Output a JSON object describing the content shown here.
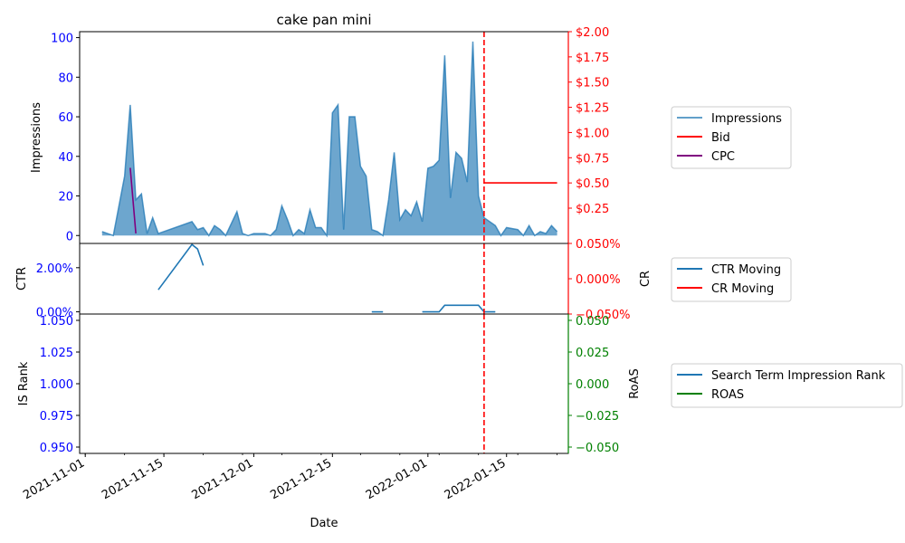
{
  "chart_data": {
    "type": "line",
    "title": "cake pan mini",
    "xlabel": "Date",
    "colors": {
      "impressions": "#1f77b4",
      "bid": "#ff0000",
      "cpc": "#800080",
      "ctr": "#1f77b4",
      "cr": "#ff0000",
      "is_rank": "#1f77b4",
      "roas": "#008000",
      "left_ticks": "#0000ff",
      "red_ticks": "#ff0000",
      "green_ticks": "#008000",
      "vline": "#ff0000"
    },
    "x_ticks": [
      "2021-11-01",
      "2021-11-15",
      "2021-12-01",
      "2021-12-15",
      "2022-01-01",
      "2022-01-15"
    ],
    "x_range": [
      "2021-10-31",
      "2022-01-26"
    ],
    "vline_date": "2022-01-11",
    "panels": [
      {
        "id": "top",
        "ylabel": "Impressions",
        "ylabel_right": "",
        "ylim": [
          -4,
          103
        ],
        "y_ticks": [
          "0",
          "20",
          "40",
          "60",
          "80",
          "100"
        ],
        "y_tick_values": [
          0,
          20,
          40,
          60,
          80,
          100
        ],
        "right_ylim": [
          -0.1,
          2.0
        ],
        "right_ticks": [
          "$0.25",
          "$0.50",
          "$0.75",
          "$1.00",
          "$1.25",
          "$1.50",
          "$1.75",
          "$2.00"
        ],
        "right_tick_values": [
          0.25,
          0.5,
          0.75,
          1.0,
          1.25,
          1.5,
          1.75,
          2.0
        ],
        "series": [
          {
            "name": "Impressions",
            "kind": "area",
            "axis": "left",
            "points": [
              [
                "2021-11-04",
                2
              ],
              [
                "2021-11-06",
                0
              ],
              [
                "2021-11-08",
                30
              ],
              [
                "2021-11-09",
                66
              ],
              [
                "2021-11-10",
                18
              ],
              [
                "2021-11-11",
                21
              ],
              [
                "2021-11-12",
                1
              ],
              [
                "2021-11-13",
                9
              ],
              [
                "2021-11-14",
                1
              ],
              [
                "2021-11-20",
                7
              ],
              [
                "2021-11-21",
                3
              ],
              [
                "2021-11-22",
                4
              ],
              [
                "2021-11-23",
                0
              ],
              [
                "2021-11-24",
                5
              ],
              [
                "2021-11-25",
                3
              ],
              [
                "2021-11-26",
                0
              ],
              [
                "2021-11-27",
                6
              ],
              [
                "2021-11-28",
                12
              ],
              [
                "2021-11-29",
                1
              ],
              [
                "2021-11-30",
                0
              ],
              [
                "2021-12-01",
                1
              ],
              [
                "2021-12-03",
                1
              ],
              [
                "2021-12-04",
                0
              ],
              [
                "2021-12-05",
                3
              ],
              [
                "2021-12-06",
                15
              ],
              [
                "2021-12-07",
                8
              ],
              [
                "2021-12-08",
                0
              ],
              [
                "2021-12-09",
                3
              ],
              [
                "2021-12-10",
                1
              ],
              [
                "2021-12-11",
                13
              ],
              [
                "2021-12-12",
                4
              ],
              [
                "2021-12-13",
                4
              ],
              [
                "2021-12-14",
                0
              ],
              [
                "2021-12-15",
                62
              ],
              [
                "2021-12-16",
                66
              ],
              [
                "2021-12-17",
                3
              ],
              [
                "2021-12-18",
                60
              ],
              [
                "2021-12-19",
                60
              ],
              [
                "2021-12-20",
                35
              ],
              [
                "2021-12-21",
                30
              ],
              [
                "2021-12-22",
                3
              ],
              [
                "2021-12-23",
                2
              ],
              [
                "2021-12-24",
                0
              ],
              [
                "2021-12-25",
                18
              ],
              [
                "2021-12-26",
                42
              ],
              [
                "2021-12-27",
                8
              ],
              [
                "2021-12-28",
                13
              ],
              [
                "2021-12-29",
                10
              ],
              [
                "2021-12-30",
                17
              ],
              [
                "2021-12-31",
                7
              ],
              [
                "2022-01-01",
                34
              ],
              [
                "2022-01-02",
                35
              ],
              [
                "2022-01-03",
                38
              ],
              [
                "2022-01-04",
                91
              ],
              [
                "2022-01-05",
                19
              ],
              [
                "2022-01-06",
                42
              ],
              [
                "2022-01-07",
                39
              ],
              [
                "2022-01-08",
                27
              ],
              [
                "2022-01-09",
                98
              ],
              [
                "2022-01-10",
                20
              ],
              [
                "2022-01-11",
                9
              ],
              [
                "2022-01-13",
                5
              ],
              [
                "2022-01-14",
                0
              ],
              [
                "2022-01-15",
                4
              ],
              [
                "2022-01-17",
                3
              ],
              [
                "2022-01-18",
                0
              ],
              [
                "2022-01-19",
                5
              ],
              [
                "2022-01-20",
                0
              ],
              [
                "2022-01-21",
                2
              ],
              [
                "2022-01-22",
                1
              ],
              [
                "2022-01-23",
                5
              ],
              [
                "2022-01-24",
                2
              ]
            ]
          },
          {
            "name": "Bid",
            "kind": "line",
            "axis": "right",
            "points": [
              [
                "2022-01-11",
                0.5
              ],
              [
                "2022-01-24",
                0.5
              ]
            ]
          },
          {
            "name": "CPC",
            "kind": "line",
            "axis": "right",
            "points": [
              [
                "2021-11-09",
                0.65
              ],
              [
                "2021-11-10",
                0.0
              ]
            ]
          }
        ],
        "legend": [
          "Impressions",
          "Bid",
          "CPC"
        ]
      },
      {
        "id": "mid",
        "ylabel": "CTR",
        "ylabel_right": "CR",
        "ylim": [
          -0.001,
          0.031
        ],
        "y_ticks": [
          "0.00%",
          "2.00%"
        ],
        "y_tick_values": [
          0.0,
          0.02
        ],
        "right_ylim": [
          -0.05,
          0.05
        ],
        "right_ticks": [
          "−0.050%",
          "0.000%",
          "0.050%"
        ],
        "right_tick_values": [
          -0.05,
          0.0,
          0.05
        ],
        "series": [
          {
            "name": "CTR Moving",
            "kind": "line",
            "axis": "left",
            "segments": [
              [
                [
                  "2021-11-14",
                  0.01
                ],
                [
                  "2021-11-20",
                  0.0305
                ],
                [
                  "2021-11-21",
                  0.0285
                ],
                [
                  "2021-11-22",
                  0.021
                ]
              ],
              [
                [
                  "2021-12-22",
                  0.0
                ],
                [
                  "2021-12-24",
                  0.0
                ]
              ],
              [
                [
                  "2021-12-31",
                  0.0
                ],
                [
                  "2022-01-03",
                  0.0
                ],
                [
                  "2022-01-04",
                  0.003
                ],
                [
                  "2022-01-10",
                  0.003
                ],
                [
                  "2022-01-11",
                  0.0
                ],
                [
                  "2022-01-13",
                  0.0
                ]
              ]
            ]
          },
          {
            "name": "CR Moving",
            "kind": "line",
            "axis": "right",
            "segments": []
          }
        ],
        "legend": [
          "CTR Moving",
          "CR Moving"
        ]
      },
      {
        "id": "bottom",
        "ylabel": "IS Rank",
        "ylabel_right": "RoAS",
        "ylim": [
          0.945,
          1.055
        ],
        "y_ticks": [
          "0.950",
          "0.975",
          "1.000",
          "1.025",
          "1.050"
        ],
        "y_tick_values": [
          0.95,
          0.975,
          1.0,
          1.025,
          1.05
        ],
        "right_ylim": [
          -0.055,
          0.055
        ],
        "right_ticks": [
          "−0.050",
          "−0.025",
          "0.000",
          "0.025",
          "0.050"
        ],
        "right_tick_values": [
          -0.05,
          -0.025,
          0.0,
          0.025,
          0.05
        ],
        "series": [
          {
            "name": "Search Term Impression Rank",
            "kind": "line",
            "axis": "left",
            "segments": []
          },
          {
            "name": "ROAS",
            "kind": "line",
            "axis": "right",
            "segments": []
          }
        ],
        "legend": [
          "Search Term Impression Rank",
          "ROAS"
        ]
      }
    ]
  }
}
